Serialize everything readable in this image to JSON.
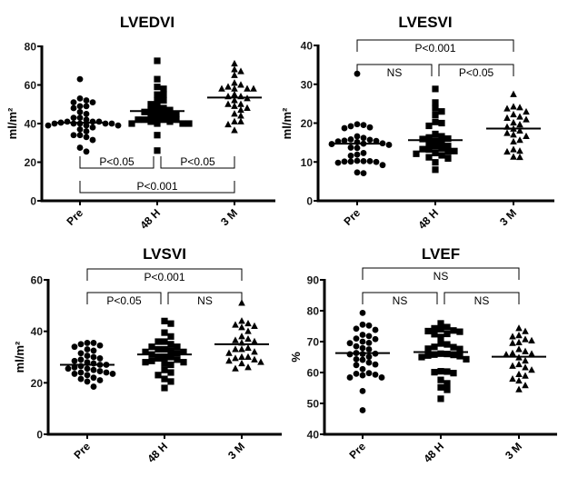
{
  "chart_data": [
    {
      "type": "scatter",
      "title": "LVEDVI",
      "ylabel": "ml/m²",
      "xlabel": "",
      "ylim": [
        0,
        80
      ],
      "yticks": [
        0,
        20,
        40,
        60,
        80
      ],
      "categories": [
        "Pre",
        "48 H",
        "3 M"
      ],
      "markers": [
        "circle",
        "square",
        "triangle"
      ],
      "means": [
        40.5,
        46.5,
        53.5
      ],
      "series": [
        {
          "name": "Pre",
          "values": [
            63,
            53,
            52,
            51,
            51,
            49,
            49,
            48,
            46,
            45,
            43,
            43,
            42,
            41,
            41,
            41,
            40.5,
            40,
            40,
            40,
            40,
            40,
            39,
            39,
            39,
            38,
            37,
            36,
            34,
            34,
            33,
            31.5,
            27.5,
            25.5
          ]
        },
        {
          "name": "48 H",
          "values": [
            72.5,
            63,
            59,
            58,
            55,
            55,
            52,
            52,
            50,
            49,
            48,
            47,
            47,
            46,
            46,
            45,
            45,
            44,
            44,
            43,
            42,
            42,
            42,
            42,
            41,
            41,
            40,
            40,
            40,
            40,
            34,
            26
          ]
        },
        {
          "name": "3 M",
          "values": [
            71,
            68,
            67,
            65,
            61,
            60,
            59,
            58,
            58,
            58,
            58,
            55,
            54,
            54,
            53,
            52,
            50,
            50,
            49,
            48,
            47,
            45,
            44,
            41,
            41,
            39.5,
            36.5
          ]
        }
      ],
      "comparisons": [
        {
          "from": "Pre",
          "to": "48 H",
          "label": "P<0.05"
        },
        {
          "from": "48 H",
          "to": "3 M",
          "label": "P<0.05"
        },
        {
          "from": "Pre",
          "to": "3 M",
          "label": "P<0.001"
        }
      ]
    },
    {
      "type": "scatter",
      "title": "LVESVI",
      "ylabel": "ml/m²",
      "xlabel": "",
      "ylim": [
        0,
        40
      ],
      "yticks": [
        0,
        10,
        20,
        30,
        40
      ],
      "categories": [
        "Pre",
        "48 H",
        "3 M"
      ],
      "markers": [
        "circle",
        "square",
        "triangle"
      ],
      "means": [
        14.7,
        15.6,
        18.6
      ],
      "series": [
        {
          "name": "Pre",
          "values": [
            32.7,
            19.7,
            19.5,
            19.2,
            18.9,
            18.7,
            16.6,
            16.2,
            15.8,
            15.7,
            15.5,
            15.4,
            15.3,
            15.1,
            14.8,
            14.7,
            14.6,
            14.4,
            13.7,
            13.6,
            12.3,
            11.9,
            11.6,
            10.3,
            10.2,
            10.2,
            10.1,
            10.1,
            10.0,
            9.8,
            9.2,
            7.3,
            7.1
          ]
        },
        {
          "name": "48 H",
          "values": [
            28.8,
            25.3,
            23.8,
            23.0,
            22.1,
            20.3,
            20.0,
            19.3,
            17.2,
            16.6,
            16.3,
            16.0,
            15.9,
            15.5,
            15.1,
            14.7,
            14.1,
            14.0,
            13.5,
            13.3,
            13.2,
            12.8,
            12.6,
            12.3,
            12.1,
            11.7,
            11.2,
            10.9,
            9.9,
            8.0
          ]
        },
        {
          "name": "3 M",
          "values": [
            27.4,
            24.2,
            24.0,
            23.7,
            22.9,
            22.2,
            21.6,
            21.3,
            20.9,
            20.1,
            19.6,
            19.0,
            18.5,
            18.0,
            17.4,
            17.0,
            16.6,
            15.6,
            15.2,
            13.2,
            12.8,
            12.6,
            11.3,
            11.2
          ]
        }
      ],
      "comparisons": [
        {
          "from": "Pre",
          "to": "48 H",
          "label": "NS"
        },
        {
          "from": "48 H",
          "to": "3 M",
          "label": "P<0.05"
        },
        {
          "from": "Pre",
          "to": "3 M",
          "label": "P<0.001"
        }
      ]
    },
    {
      "type": "scatter",
      "title": "LVSVI",
      "ylabel": "ml/m²",
      "xlabel": "",
      "ylim": [
        0,
        60
      ],
      "yticks": [
        0,
        20,
        40,
        60
      ],
      "categories": [
        "Pre",
        "48 H",
        "3 M"
      ],
      "markers": [
        "circle",
        "square",
        "triangle"
      ],
      "means": [
        27,
        31,
        35
      ],
      "series": [
        {
          "name": "Pre",
          "values": [
            35.5,
            35.5,
            35,
            34.5,
            34,
            33,
            32.5,
            31.5,
            30.5,
            30,
            29.5,
            29,
            28.5,
            28,
            27.5,
            27,
            27,
            26.5,
            26,
            25.5,
            25.5,
            25,
            24.5,
            24,
            24,
            23.5,
            23.5,
            23,
            22,
            21.5,
            21,
            20.5,
            18.5
          ]
        },
        {
          "name": "48 H",
          "values": [
            44,
            43,
            39.5,
            38,
            36,
            36,
            35,
            34,
            34,
            33,
            33,
            32.5,
            32,
            32,
            31.5,
            31,
            30,
            30,
            29.5,
            29,
            28.5,
            28,
            28,
            27.5,
            27,
            25,
            24,
            23,
            21.5,
            20.5,
            18
          ]
        },
        {
          "name": "3 M",
          "values": [
            51,
            44,
            43,
            42.5,
            42,
            41.5,
            40,
            38,
            37,
            36.5,
            36,
            35.5,
            33.5,
            33,
            33,
            32,
            31.5,
            30,
            30,
            29.5,
            29,
            28.5,
            28,
            27.5,
            26,
            25.5
          ]
        }
      ],
      "comparisons": [
        {
          "from": "Pre",
          "to": "48 H",
          "label": "P<0.05"
        },
        {
          "from": "48 H",
          "to": "3 M",
          "label": "NS"
        },
        {
          "from": "Pre",
          "to": "3 M",
          "label": "P<0.001"
        }
      ]
    },
    {
      "type": "scatter",
      "title": "LVEF",
      "ylabel": "%",
      "xlabel": "",
      "ylim": [
        40,
        90
      ],
      "yticks": [
        40,
        50,
        60,
        70,
        80,
        90
      ],
      "categories": [
        "Pre",
        "48 H",
        "3 M"
      ],
      "markers": [
        "circle",
        "square",
        "triangle"
      ],
      "means": [
        66.3,
        66.6,
        65.1
      ],
      "series": [
        {
          "name": "Pre",
          "values": [
            79.3,
            75.5,
            75.2,
            74.2,
            73.8,
            72.2,
            71.8,
            71.0,
            70.8,
            70.0,
            69.6,
            69.5,
            68.5,
            67.9,
            67.5,
            66.3,
            66.1,
            66.0,
            65.9,
            65.1,
            64.3,
            64.1,
            63.2,
            62.6,
            62.4,
            61.1,
            59.8,
            59.6,
            59.3,
            59.1,
            58.4,
            58.4,
            54.0,
            47.8
          ]
        },
        {
          "name": "48 H",
          "values": [
            75.9,
            74.7,
            74.3,
            74.0,
            73.6,
            73.4,
            73.2,
            72.5,
            72.4,
            71.5,
            69.4,
            69.1,
            68.3,
            68.2,
            67.7,
            67.6,
            66.1,
            66.0,
            65.8,
            65.7,
            65.5,
            65.3,
            65.0,
            64.3,
            60.4,
            60.3,
            60.1,
            59.8,
            57.6,
            56.5,
            55.2,
            54.4,
            51.5
          ]
        },
        {
          "name": "3 M",
          "values": [
            74.3,
            73.3,
            72.0,
            71.6,
            70.7,
            70.3,
            69.7,
            69.5,
            67.5,
            66.8,
            66.2,
            66.0,
            65.8,
            64.8,
            63.8,
            62.6,
            62.1,
            61.6,
            60.8,
            59.4,
            58.9,
            57.9,
            57.3,
            55.8,
            54.5
          ]
        }
      ],
      "comparisons": [
        {
          "from": "Pre",
          "to": "48 H",
          "label": "NS"
        },
        {
          "from": "48 H",
          "to": "3 M",
          "label": "NS"
        },
        {
          "from": "Pre",
          "to": "3 M",
          "label": "NS"
        }
      ]
    }
  ]
}
